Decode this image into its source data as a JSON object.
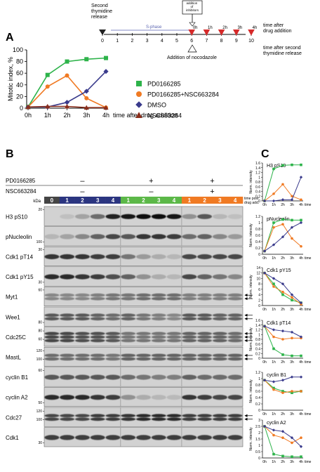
{
  "panels": {
    "a": "A",
    "b": "B",
    "c": "C"
  },
  "colors": {
    "pd": "#2db34a",
    "combo": "#f07a23",
    "dmso": "#3a3b8c",
    "nsc": "#8b2e1c",
    "lane_grey": "#454545",
    "lane_navy": "#2b3580",
    "lane_green": "#5cb848",
    "lane_orange": "#f07a23",
    "timeline_red": "#d62a2a",
    "sphase": "#5a63b0"
  },
  "timeline": {
    "ticks": [
      "0",
      "1",
      "2",
      "3",
      "4",
      "5",
      "6",
      "7",
      "8",
      "9",
      "10"
    ],
    "second_release": "Second\nthymidine\nrelease",
    "sphase": "S-phase",
    "inhibitors_box": "addition\nof\ninhibitors",
    "nocodazole": "Addition of nocodazole",
    "after_drug": "time after\ndrug addition",
    "after_second": "time after second\nthymidine release",
    "drug_times": [
      "0h",
      "1h",
      "2h",
      "3h",
      "4h"
    ]
  },
  "legend": [
    "PD0166285",
    "PD0166285+NSC663284",
    "DMSO",
    "NSC663284"
  ],
  "chart_data": [
    {
      "type": "line",
      "title": "",
      "xlabel": "time after drug addition",
      "ylabel": "Mitotic index, %",
      "categories": [
        "0h",
        "1h",
        "2h",
        "3h",
        "4h"
      ],
      "yticks": [
        "0",
        "20",
        "40",
        "60",
        "80",
        "100"
      ],
      "ylim": [
        0,
        100
      ],
      "series": [
        {
          "name": "PD0166285",
          "marker": "square",
          "values": [
            2,
            57,
            80,
            84,
            86
          ]
        },
        {
          "name": "PD0166285+NSC663284",
          "marker": "circle",
          "values": [
            2,
            37,
            56,
            17,
            1
          ]
        },
        {
          "name": "DMSO",
          "marker": "diamond",
          "values": [
            2,
            2,
            10,
            29,
            63
          ]
        },
        {
          "name": "NSC663284",
          "marker": "triangle",
          "values": [
            2,
            3,
            3,
            1,
            1
          ]
        }
      ]
    },
    {
      "type": "line",
      "title": "H3 pS10",
      "ylabel": "Norm. intensity",
      "categories": [
        "0h",
        "1h",
        "2h",
        "3h",
        "4h"
      ],
      "xunit": "time",
      "yticks": [
        "0",
        "0.2",
        "0.4",
        "0.6",
        "0.8",
        "1",
        "1.2",
        "1.4",
        "1.6"
      ],
      "ylim": [
        0,
        1.6
      ],
      "series": [
        {
          "name": "PD0166285",
          "values": [
            0,
            1.35,
            1.5,
            1.52,
            1.52
          ]
        },
        {
          "name": "PD0166285+NSC663284",
          "values": [
            0,
            0.3,
            0.7,
            0.2,
            0.05
          ]
        },
        {
          "name": "DMSO",
          "values": [
            0,
            0,
            0.05,
            0.05,
            1.0
          ]
        }
      ]
    },
    {
      "type": "line",
      "title": "pNucleolin",
      "ylabel": "Norm. intensity",
      "categories": [
        "0h",
        "1h",
        "2h",
        "3h",
        "4h"
      ],
      "xunit": "time",
      "yticks": [
        "0",
        "0.2",
        "0.4",
        "0.6",
        "0.8",
        "1",
        "1.2"
      ],
      "ylim": [
        0,
        1.2
      ],
      "series": [
        {
          "name": "PD0166285",
          "values": [
            0.1,
            1.0,
            1.1,
            1.08,
            1.08
          ]
        },
        {
          "name": "PD0166285+NSC663284",
          "values": [
            0.1,
            0.85,
            0.95,
            0.5,
            0.25
          ]
        },
        {
          "name": "DMSO",
          "values": [
            0.1,
            0.3,
            0.55,
            0.85,
            1.0
          ]
        }
      ]
    },
    {
      "type": "line",
      "title": "Cdk1 pY15",
      "ylabel": "Norm. intensity",
      "categories": [
        "0h",
        "1h",
        "2h",
        "3h",
        "4h"
      ],
      "xunit": "time",
      "yticks": [
        "0",
        "2",
        "4",
        "6",
        "8",
        "10",
        "12",
        "14"
      ],
      "ylim": [
        0,
        14
      ],
      "series": [
        {
          "name": "PD0166285",
          "values": [
            12,
            8,
            4,
            2,
            1
          ]
        },
        {
          "name": "PD0166285+NSC663284",
          "values": [
            12,
            7,
            5,
            3,
            0.5
          ]
        },
        {
          "name": "DMSO",
          "values": [
            12,
            10,
            8,
            4,
            1
          ]
        }
      ]
    },
    {
      "type": "line",
      "title": "Cdk1 pT14",
      "ylabel": "Norm. intensity",
      "categories": [
        "0h",
        "1h",
        "2h",
        "3h",
        "4h"
      ],
      "xunit": "time",
      "yticks": [
        "0",
        "0.2",
        "0.4",
        "0.6",
        "0.8",
        "1",
        "1.2",
        "1.4",
        "1.6"
      ],
      "ylim": [
        0,
        1.6
      ],
      "series": [
        {
          "name": "PD0166285",
          "values": [
            1.35,
            0.4,
            0.15,
            0.1,
            0.1
          ]
        },
        {
          "name": "PD0166285+NSC663284",
          "values": [
            1.35,
            0.9,
            0.8,
            0.85,
            0.85
          ]
        },
        {
          "name": "DMSO",
          "values": [
            1.35,
            1.2,
            1.15,
            1.1,
            0.9
          ]
        }
      ]
    },
    {
      "type": "line",
      "title": "cyclin B1",
      "ylabel": "Norm. intensity",
      "categories": [
        "0h",
        "1h",
        "2h",
        "3h",
        "4h"
      ],
      "xunit": "time",
      "yticks": [
        "0",
        "0.2",
        "0.4",
        "0.6",
        "0.8",
        "1",
        "1.2"
      ],
      "ylim": [
        0,
        1.2
      ],
      "series": [
        {
          "name": "PD0166285",
          "values": [
            0.95,
            0.7,
            0.6,
            0.55,
            0.6
          ]
        },
        {
          "name": "PD0166285+NSC663284",
          "values": [
            0.95,
            0.65,
            0.55,
            0.6,
            0.6
          ]
        },
        {
          "name": "DMSO",
          "values": [
            0.95,
            0.9,
            0.95,
            1.05,
            1.05
          ]
        }
      ]
    },
    {
      "type": "line",
      "title": "cyclin A2",
      "ylabel": "Norm. intensity",
      "categories": [
        "0h",
        "1h",
        "2h",
        "3h",
        "4h"
      ],
      "xunit": "time",
      "yticks": [
        "0",
        "0.5",
        "1",
        "1.5",
        "2",
        "2.5",
        "3"
      ],
      "ylim": [
        0,
        3
      ],
      "series": [
        {
          "name": "PD0166285",
          "values": [
            2.5,
            0.3,
            0.15,
            0.1,
            0.1
          ]
        },
        {
          "name": "PD0166285+NSC663284",
          "values": [
            2.5,
            1.8,
            1.6,
            1.2,
            1.6
          ]
        },
        {
          "name": "DMSO",
          "values": [
            2.5,
            2.2,
            2.1,
            1.6,
            0.9
          ]
        }
      ]
    }
  ],
  "blot": {
    "treatments": {
      "pd": "PD0166285",
      "nsc": "NSC663284",
      "pd_states": [
        "–",
        "+",
        "+"
      ],
      "nsc_states": [
        "–",
        "–",
        "+"
      ]
    },
    "kda": "kDa",
    "time_post": "time post\ndrug add.",
    "lanes": [
      "0",
      "1",
      "2",
      "3",
      "4",
      "1",
      "2",
      "3",
      "4",
      "1",
      "2",
      "3",
      "4"
    ],
    "rows": [
      {
        "label": "H3 pS10",
        "mw": [
          "20"
        ]
      },
      {
        "label": "pNucleolin",
        "mw": [
          "100"
        ]
      },
      {
        "label": "Cdk1 pT14",
        "mw": [
          "30"
        ]
      },
      {
        "label": "Cdk1 pY15",
        "mw": [
          "30"
        ]
      },
      {
        "label": "Myt1",
        "mw": [
          "60"
        ]
      },
      {
        "label": "Wee1",
        "mw": [
          "80"
        ]
      },
      {
        "label": "Cdc25C",
        "mw": [
          "80",
          "60"
        ]
      },
      {
        "label": "MastL",
        "mw": [
          "120",
          "100"
        ]
      },
      {
        "label": "cyclin B1",
        "mw": [
          "60"
        ]
      },
      {
        "label": "cyclin A2",
        "mw": [
          "50"
        ]
      },
      {
        "label": "Cdc27",
        "mw": [
          "120",
          "100"
        ]
      },
      {
        "label": "Cdk1",
        "mw": [
          "30"
        ]
      }
    ]
  }
}
